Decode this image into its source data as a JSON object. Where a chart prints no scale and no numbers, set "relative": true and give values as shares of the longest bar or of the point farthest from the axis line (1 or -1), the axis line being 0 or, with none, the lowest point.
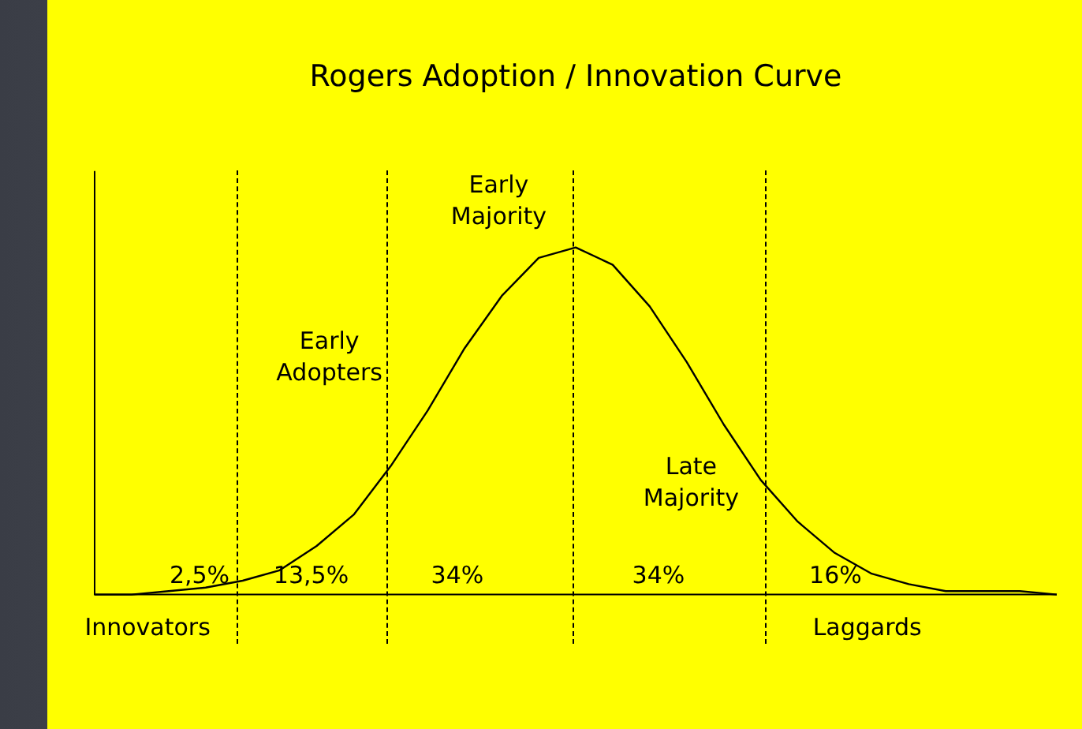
{
  "chart_data": {
    "type": "line",
    "title": "Rogers Adoption / Innovation Curve",
    "relative": true,
    "tick_labels": false,
    "legend": false,
    "grid": false,
    "marker": "none",
    "line_style": "solid",
    "categories": [
      null,
      null,
      null,
      null,
      null,
      null,
      null,
      null,
      null,
      null,
      null,
      null,
      null,
      null,
      null,
      null,
      null,
      null,
      null,
      null,
      null,
      null,
      null,
      null,
      null,
      null,
      null
    ],
    "series": [
      {
        "color": "#000000",
        "values": [
          0,
          0,
          0.01,
          0.02,
          0.04,
          0.07,
          0.14,
          0.23,
          0.37,
          0.53,
          0.71,
          0.86,
          0.97,
          1,
          0.95,
          0.83,
          0.67,
          0.49,
          0.33,
          0.21,
          0.12,
          0.06,
          0.03,
          0.01,
          0.01,
          0.01,
          0
        ]
      }
    ],
    "annotations": [
      "2,5%",
      "13,5%",
      "34%",
      "34%",
      "16%",
      "Innovators",
      "Early Adopters",
      "Early Majority",
      "Late Majority",
      "Laggards"
    ]
  }
}
